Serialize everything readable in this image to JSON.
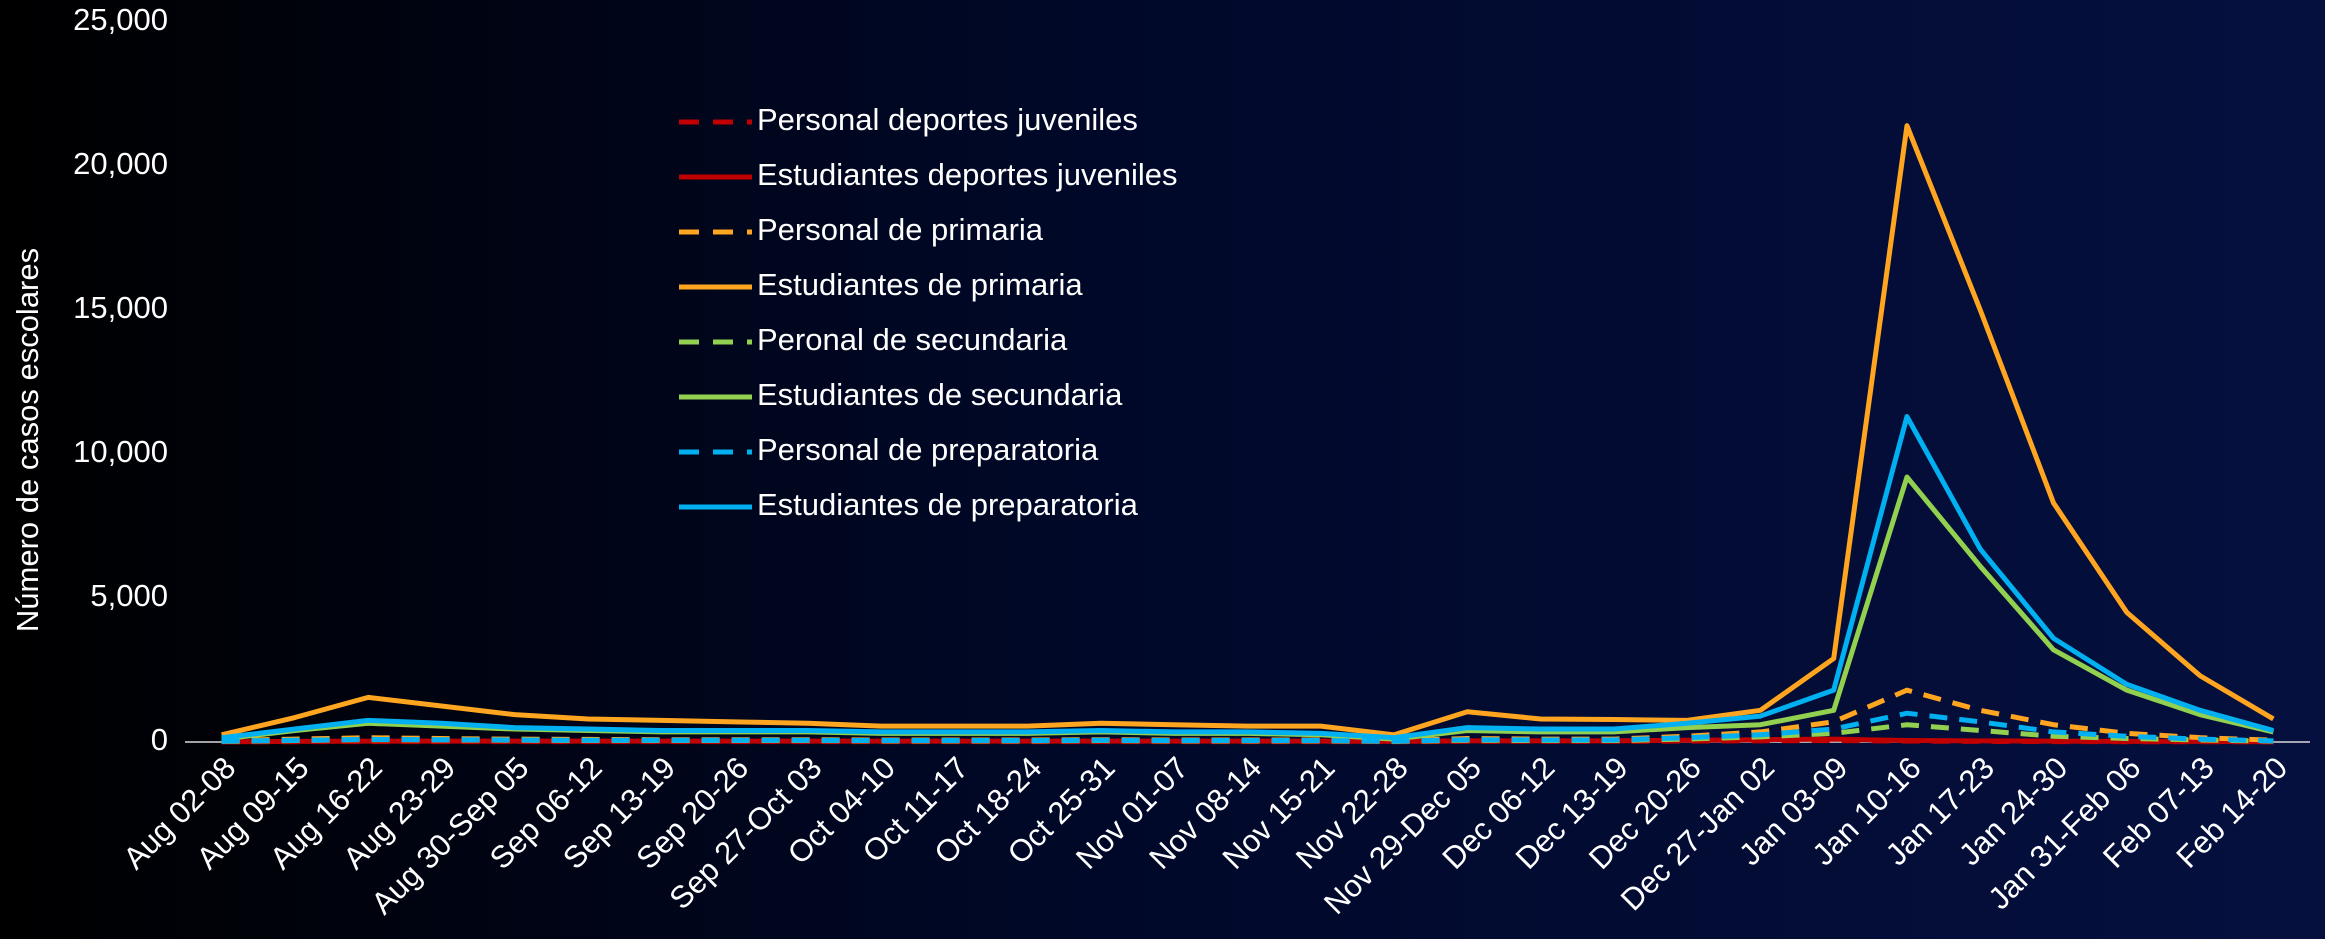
{
  "chart_data": {
    "type": "line",
    "ylabel": "Número de casos escolares",
    "categories": [
      "Aug 02-08",
      "Aug 09-15",
      "Aug 16-22",
      "Aug 23-29",
      "Aug 30-Sep 05",
      "Sep 06-12",
      "Sep 13-19",
      "Sep 20-26",
      "Sep 27-Oct 03",
      "Oct 04-10",
      "Oct 11-17",
      "Oct 18-24",
      "Oct 25-31",
      "Nov 01-07",
      "Nov 08-14",
      "Nov 15-21",
      "Nov 22-28",
      "Nov 29-Dec 05",
      "Dec 06-12",
      "Dec 13-19",
      "Dec 20-26",
      "Dec 27-Jan 02",
      "Jan 03-09",
      "Jan 10-16",
      "Jan 17-23",
      "Jan 24-30",
      "Jan 31-Feb 06",
      "Feb 07-13",
      "Feb 14-20"
    ],
    "series": [
      {
        "name": "Personal deportes juveniles",
        "color": "#c00000",
        "dashed": true,
        "values": [
          5,
          10,
          15,
          15,
          15,
          15,
          15,
          15,
          15,
          15,
          15,
          15,
          15,
          15,
          15,
          15,
          10,
          20,
          20,
          20,
          30,
          40,
          50,
          30,
          20,
          15,
          10,
          10,
          5
        ]
      },
      {
        "name": "Estudiantes deportes juveniles",
        "color": "#c00000",
        "dashed": false,
        "values": [
          10,
          20,
          30,
          30,
          30,
          30,
          30,
          30,
          30,
          30,
          30,
          30,
          30,
          30,
          30,
          30,
          20,
          40,
          40,
          40,
          60,
          80,
          100,
          50,
          40,
          30,
          20,
          20,
          10
        ]
      },
      {
        "name": "Personal de primaria",
        "color": "#ffa51f",
        "dashed": true,
        "values": [
          50,
          100,
          150,
          120,
          100,
          90,
          80,
          80,
          80,
          70,
          70,
          70,
          80,
          70,
          70,
          70,
          40,
          120,
          100,
          100,
          200,
          350,
          700,
          1800,
          1100,
          600,
          300,
          150,
          60
        ]
      },
      {
        "name": "Estudiantes de primaria",
        "color": "#ffa51f",
        "dashed": false,
        "values": [
          250,
          850,
          1550,
          1250,
          950,
          800,
          750,
          700,
          650,
          550,
          550,
          550,
          650,
          600,
          550,
          550,
          250,
          1050,
          800,
          780,
          750,
          1100,
          2900,
          21400,
          15000,
          8300,
          4500,
          2300,
          800
        ]
      },
      {
        "name": "Peronal de secundaria",
        "color": "#92d050",
        "dashed": true,
        "values": [
          20,
          50,
          80,
          70,
          60,
          50,
          50,
          50,
          50,
          40,
          40,
          40,
          50,
          40,
          40,
          40,
          20,
          60,
          50,
          50,
          100,
          180,
          300,
          600,
          400,
          200,
          120,
          70,
          30
        ]
      },
      {
        "name": "Estudiantes de secundaria",
        "color": "#92d050",
        "dashed": false,
        "values": [
          100,
          400,
          650,
          550,
          450,
          400,
          350,
          350,
          350,
          300,
          300,
          300,
          350,
          300,
          300,
          250,
          100,
          400,
          350,
          350,
          500,
          600,
          1100,
          9200,
          6100,
          3200,
          1800,
          950,
          350
        ]
      },
      {
        "name": "Personal de preparatoria",
        "color": "#00b0f0",
        "dashed": true,
        "values": [
          30,
          60,
          90,
          80,
          70,
          60,
          60,
          60,
          60,
          50,
          50,
          50,
          60,
          50,
          50,
          50,
          30,
          80,
          70,
          70,
          150,
          250,
          450,
          1000,
          700,
          350,
          200,
          100,
          40
        ]
      },
      {
        "name": "Estudiantes de preparatoria",
        "color": "#00b0f0",
        "dashed": false,
        "values": [
          150,
          450,
          750,
          650,
          500,
          450,
          400,
          400,
          400,
          350,
          350,
          350,
          400,
          350,
          350,
          300,
          150,
          500,
          450,
          450,
          650,
          900,
          1800,
          11300,
          6700,
          3600,
          2000,
          1100,
          400
        ]
      }
    ],
    "ylim": [
      0,
      25000
    ],
    "yticks": [
      0,
      {
        "value": 5000,
        "label": "5,000"
      },
      {
        "value": 10000,
        "label": "10,000"
      },
      {
        "value": 15000,
        "label": "15,000"
      },
      {
        "value": 20000,
        "label": "20,000"
      },
      {
        "value": 25000,
        "label": "25,000"
      }
    ],
    "grid": false,
    "legend": "top-left"
  }
}
